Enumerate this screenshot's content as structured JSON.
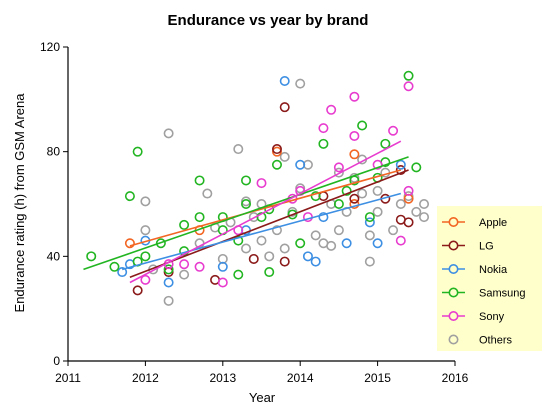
{
  "chart_data": {
    "type": "scatter",
    "title": "Endurance vs year by brand",
    "xlabel": "Year",
    "ylabel": "Endurance rating (h) from GSM Arena",
    "xlim": [
      2011,
      2016
    ],
    "ylim": [
      0,
      120
    ],
    "xticks": [
      "2011",
      "2012",
      "2013",
      "2014",
      "2015",
      "2016"
    ],
    "yticks": [
      "0",
      "40",
      "80",
      "120"
    ],
    "legend_position": "right",
    "series": [
      {
        "name": "Apple",
        "color": "#f26522",
        "points": [
          [
            2011.8,
            45
          ],
          [
            2012.7,
            50
          ],
          [
            2013.7,
            80
          ],
          [
            2014.7,
            79
          ],
          [
            2014.7,
            60
          ],
          [
            2015.4,
            62
          ]
        ],
        "fit": [
          [
            2011.8,
            44
          ],
          [
            2015.3,
            73
          ]
        ]
      },
      {
        "name": "LG",
        "color": "#8b1a1a",
        "points": [
          [
            2011.9,
            27
          ],
          [
            2012.3,
            34
          ],
          [
            2012.9,
            31
          ],
          [
            2013.4,
            39
          ],
          [
            2013.7,
            81
          ],
          [
            2013.8,
            97
          ],
          [
            2013.8,
            38
          ],
          [
            2014.3,
            63
          ],
          [
            2014.7,
            62
          ],
          [
            2015.1,
            62
          ],
          [
            2015.3,
            73
          ],
          [
            2015.3,
            54
          ],
          [
            2015.4,
            53
          ]
        ],
        "fit": [
          [
            2011.8,
            32
          ],
          [
            2015.4,
            73
          ]
        ]
      },
      {
        "name": "Nokia",
        "color": "#3d8fe3",
        "points": [
          [
            2011.7,
            34
          ],
          [
            2011.8,
            37
          ],
          [
            2012.0,
            46
          ],
          [
            2012.3,
            30
          ],
          [
            2013.0,
            36
          ],
          [
            2013.3,
            50
          ],
          [
            2013.8,
            107
          ],
          [
            2014.0,
            75
          ],
          [
            2014.1,
            40
          ],
          [
            2014.2,
            38
          ],
          [
            2014.3,
            55
          ],
          [
            2014.6,
            45
          ],
          [
            2014.9,
            53
          ],
          [
            2015.0,
            45
          ],
          [
            2015.3,
            75
          ]
        ],
        "fit": [
          [
            2011.7,
            35
          ],
          [
            2015.3,
            64
          ]
        ]
      },
      {
        "name": "Samsung",
        "color": "#22b522",
        "points": [
          [
            2011.3,
            40
          ],
          [
            2011.6,
            36
          ],
          [
            2011.8,
            63
          ],
          [
            2011.9,
            38
          ],
          [
            2011.9,
            80
          ],
          [
            2012.0,
            40
          ],
          [
            2012.2,
            45
          ],
          [
            2012.3,
            35
          ],
          [
            2012.5,
            42
          ],
          [
            2012.5,
            52
          ],
          [
            2012.7,
            55
          ],
          [
            2012.7,
            69
          ],
          [
            2013.0,
            50
          ],
          [
            2013.0,
            55
          ],
          [
            2013.2,
            46
          ],
          [
            2013.2,
            33
          ],
          [
            2013.3,
            60
          ],
          [
            2013.3,
            69
          ],
          [
            2013.5,
            55
          ],
          [
            2013.6,
            58
          ],
          [
            2013.7,
            75
          ],
          [
            2013.9,
            56
          ],
          [
            2014.0,
            45
          ],
          [
            2014.2,
            63
          ],
          [
            2014.3,
            83
          ],
          [
            2014.5,
            60
          ],
          [
            2014.6,
            65
          ],
          [
            2014.7,
            69
          ],
          [
            2014.8,
            90
          ],
          [
            2014.9,
            55
          ],
          [
            2015.0,
            70
          ],
          [
            2015.1,
            76
          ],
          [
            2015.1,
            83
          ],
          [
            2015.4,
            109
          ],
          [
            2015.5,
            74
          ],
          [
            2013.6,
            34
          ]
        ],
        "fit": [
          [
            2011.2,
            35
          ],
          [
            2015.4,
            78
          ]
        ]
      },
      {
        "name": "Sony",
        "color": "#e83ccf",
        "points": [
          [
            2012.0,
            31
          ],
          [
            2012.3,
            37
          ],
          [
            2012.5,
            37
          ],
          [
            2012.7,
            36
          ],
          [
            2013.0,
            30
          ],
          [
            2013.2,
            50
          ],
          [
            2013.5,
            68
          ],
          [
            2013.9,
            62
          ],
          [
            2014.0,
            65
          ],
          [
            2014.1,
            55
          ],
          [
            2014.3,
            89
          ],
          [
            2014.4,
            96
          ],
          [
            2014.5,
            74
          ],
          [
            2014.7,
            86
          ],
          [
            2014.7,
            101
          ],
          [
            2015.0,
            75
          ],
          [
            2015.2,
            88
          ],
          [
            2015.3,
            46
          ],
          [
            2015.4,
            65
          ],
          [
            2015.4,
            105
          ]
        ],
        "fit": [
          [
            2011.8,
            30
          ],
          [
            2015.3,
            84
          ]
        ]
      },
      {
        "name": "Others",
        "color": "#a0a0a0",
        "points": [
          [
            2012.0,
            61
          ],
          [
            2012.0,
            50
          ],
          [
            2012.3,
            87
          ],
          [
            2012.3,
            23
          ],
          [
            2012.5,
            33
          ],
          [
            2012.7,
            45
          ],
          [
            2012.8,
            64
          ],
          [
            2012.9,
            51
          ],
          [
            2013.0,
            39
          ],
          [
            2013.1,
            53
          ],
          [
            2013.2,
            81
          ],
          [
            2013.3,
            43
          ],
          [
            2013.4,
            55
          ],
          [
            2013.5,
            60
          ],
          [
            2013.5,
            46
          ],
          [
            2013.6,
            40
          ],
          [
            2013.7,
            50
          ],
          [
            2013.8,
            78
          ],
          [
            2013.8,
            43
          ],
          [
            2013.9,
            57
          ],
          [
            2014.0,
            66
          ],
          [
            2014.0,
            106
          ],
          [
            2014.1,
            75
          ],
          [
            2014.2,
            48
          ],
          [
            2014.3,
            45
          ],
          [
            2014.4,
            44
          ],
          [
            2014.4,
            60
          ],
          [
            2014.5,
            50
          ],
          [
            2014.5,
            72
          ],
          [
            2014.6,
            57
          ],
          [
            2014.7,
            70
          ],
          [
            2014.8,
            77
          ],
          [
            2014.8,
            64
          ],
          [
            2014.9,
            48
          ],
          [
            2014.9,
            38
          ],
          [
            2015.0,
            57
          ],
          [
            2015.0,
            65
          ],
          [
            2015.1,
            72
          ],
          [
            2015.2,
            50
          ],
          [
            2015.3,
            60
          ],
          [
            2015.4,
            63
          ],
          [
            2015.5,
            57
          ],
          [
            2015.6,
            55
          ],
          [
            2015.6,
            60
          ],
          [
            2012.1,
            35
          ],
          [
            2013.3,
            61
          ]
        ],
        "fit": null
      }
    ]
  }
}
